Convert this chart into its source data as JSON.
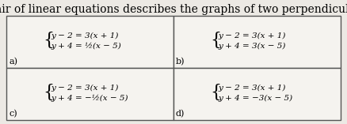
{
  "title": "Which pair of linear equations describes the graphs of two perpendicular lines?",
  "title_fontsize": 10,
  "background_color": "#ece9e4",
  "box_facecolor": "#f5f3ef",
  "border_color": "#555555",
  "cells": {
    "a": {
      "label": "a)",
      "line1": "y − 2 = 3(x + 1)",
      "line2": "y + 4 = ½(x − 5)"
    },
    "b": {
      "label": "b)",
      "line1": "y − 2 = 3(x + 1)",
      "line2": "y + 4 = 3(x − 5)"
    },
    "c": {
      "label": "c)",
      "line1": "y − 2 = 3(x + 1)",
      "line2": "y + 4 = −½(x − 5)"
    },
    "d": {
      "label": "d)",
      "line1": "y − 2 = 3(x + 1)",
      "line2": "y + 4 = −3(x − 5)"
    }
  },
  "cell_fontsize": 7.5,
  "label_fontsize": 8,
  "brace_fontsize": 16
}
